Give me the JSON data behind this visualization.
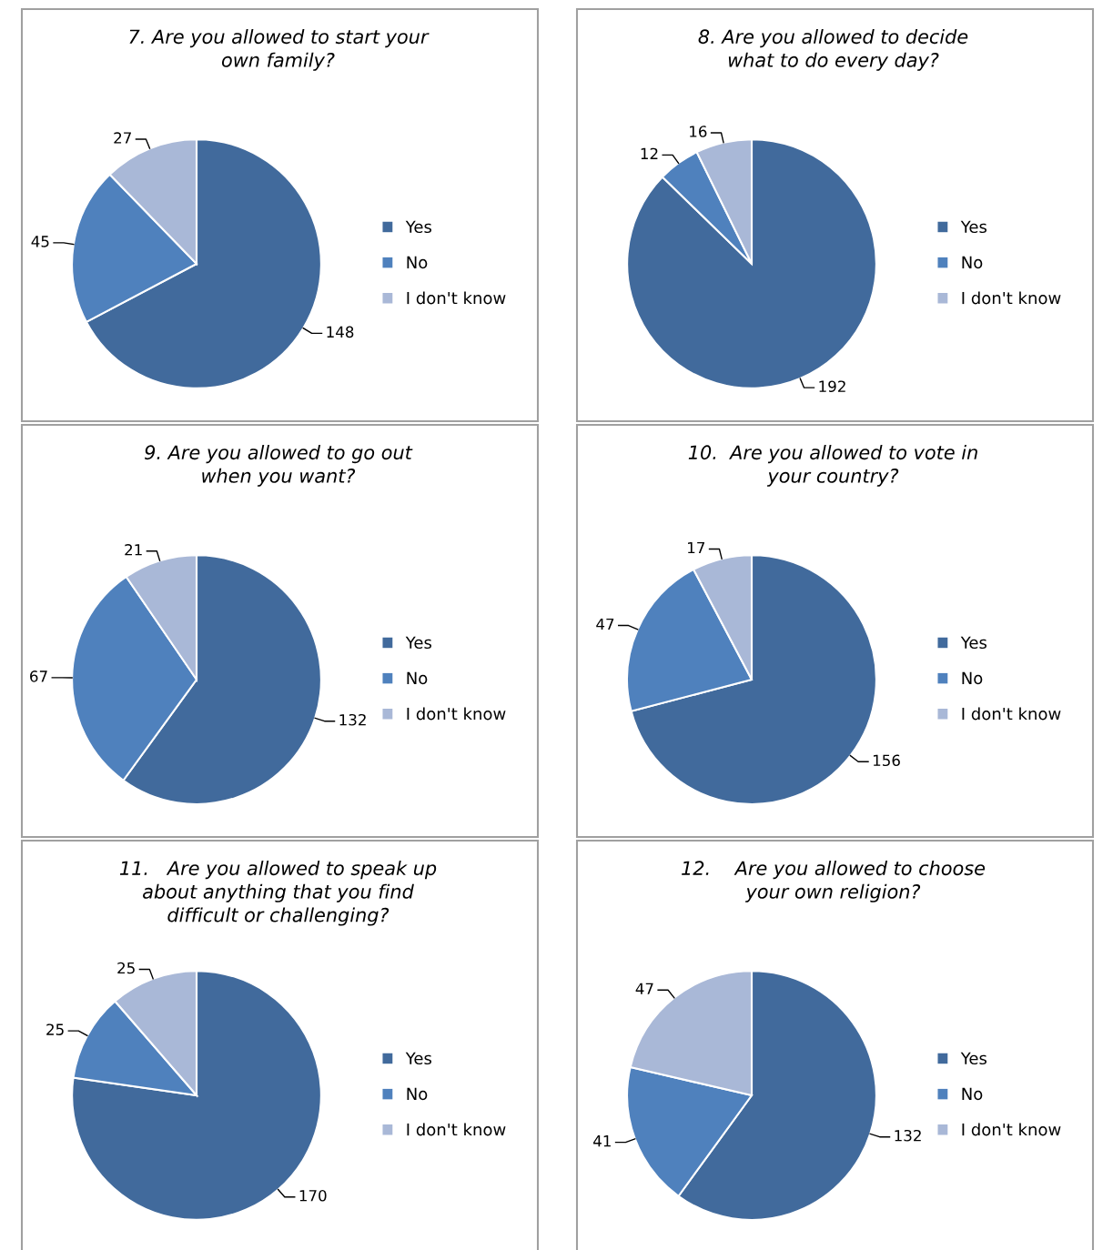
{
  "chart_data": [
    {
      "type": "pie",
      "title": "7. Are you allowed to start your\nown family?",
      "categories": [
        "Yes",
        "No",
        "I don't know"
      ],
      "values": [
        148,
        45,
        27
      ],
      "colors": [
        "#416a9c",
        "#4f81bd",
        "#a9b8d7"
      ],
      "data_labels": true,
      "legend": "right"
    },
    {
      "type": "pie",
      "title": "8. Are you allowed to decide\nwhat to do every day?",
      "categories": [
        "Yes",
        "No",
        "I don't know"
      ],
      "values": [
        192,
        12,
        16
      ],
      "colors": [
        "#416a9c",
        "#4f81bd",
        "#a9b8d7"
      ],
      "data_labels": true,
      "legend": "right"
    },
    {
      "type": "pie",
      "title": "9. Are you allowed to go out\nwhen you want?",
      "categories": [
        "Yes",
        "No",
        "I don't know"
      ],
      "values": [
        132,
        67,
        21
      ],
      "colors": [
        "#416a9c",
        "#4f81bd",
        "#a9b8d7"
      ],
      "data_labels": true,
      "legend": "right"
    },
    {
      "type": "pie",
      "title": "10.  Are you allowed to vote in\nyour country?",
      "categories": [
        "Yes",
        "No",
        "I don't know"
      ],
      "values": [
        156,
        47,
        17
      ],
      "colors": [
        "#416a9c",
        "#4f81bd",
        "#a9b8d7"
      ],
      "data_labels": true,
      "legend": "right"
    },
    {
      "type": "pie",
      "title": "11.   Are you allowed to speak up\nabout anything that you find\ndifficult or challenging?",
      "categories": [
        "Yes",
        "No",
        "I don't know"
      ],
      "values": [
        170,
        25,
        25
      ],
      "colors": [
        "#416a9c",
        "#4f81bd",
        "#a9b8d7"
      ],
      "data_labels": true,
      "legend": "right"
    },
    {
      "type": "pie",
      "title": "12.    Are you allowed to choose\nyour own religion?",
      "categories": [
        "Yes",
        "No",
        "I don't know"
      ],
      "values": [
        132,
        41,
        47
      ],
      "colors": [
        "#416a9c",
        "#4f81bd",
        "#a9b8d7"
      ],
      "data_labels": true,
      "legend": "right"
    }
  ]
}
